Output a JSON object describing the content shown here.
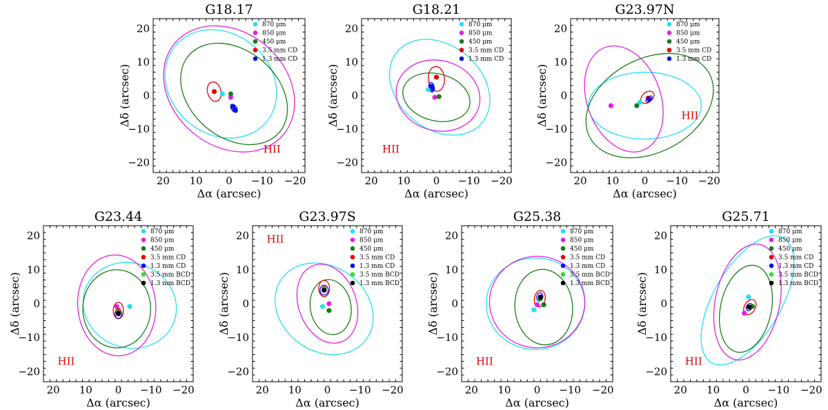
{
  "colors": {
    "870": "#22e0f2",
    "850": "#e51ee5",
    "450": "#1a7a1a",
    "3.5mmCD": "#e60000",
    "1.3mmCD": "#0b12e0",
    "3.5mmBCD": "#2ee02e",
    "1.3mmBCD": "#000000"
  },
  "chart_data": [
    {
      "type": "scatter",
      "title": "G18.17",
      "xlabel": "Δα (arcsec)",
      "ylabel": "Δδ (arcsec)",
      "xlim": [
        23,
        -23
      ],
      "ylim": [
        -23,
        23
      ],
      "xticks": [
        20,
        10,
        0,
        -10,
        -20
      ],
      "yticks": [
        -20,
        -10,
        0,
        10,
        20
      ],
      "legend": [
        "870 μm",
        "850 μm",
        "450 μm",
        "3.5 mm CD",
        "1.3 mm CD"
      ],
      "legend_keys": [
        "870",
        "850",
        "450",
        "3.5mmCD",
        "1.3mmCD"
      ],
      "label": "HII",
      "points": [
        {
          "key": "870",
          "x": 2.0,
          "y": 0.5
        },
        {
          "key": "850",
          "x": -0.5,
          "y": -0.5
        },
        {
          "key": "450",
          "x": -0.5,
          "y": 0.5
        },
        {
          "key": "3.5mmCD",
          "x": 4.5,
          "y": 1.2
        },
        {
          "key": "1.3mmCD",
          "x": -1.2,
          "y": -3.3
        },
        {
          "key": "1.3mmCD",
          "x": -1.8,
          "y": -4.3
        }
      ],
      "ellipses": [
        {
          "key": "870",
          "x": 2.5,
          "y": 3.5,
          "a": 18.0,
          "b": 15.0,
          "pa": -40
        },
        {
          "key": "850",
          "x": 0.0,
          "y": 2.0,
          "a": 21.5,
          "b": 17.0,
          "pa": -40
        },
        {
          "key": "450",
          "x": -1.5,
          "y": 0.5,
          "a": 18.0,
          "b": 13.0,
          "pa": -40
        },
        {
          "key": "3.5mmCD",
          "x": 4.5,
          "y": 1.2,
          "a": 3.0,
          "b": 2.0,
          "pa": -75
        },
        {
          "key": "1.3mmCD",
          "x": -1.5,
          "y": -3.8,
          "a": 1.4,
          "b": 0.8,
          "pa": -55
        }
      ]
    },
    {
      "type": "scatter",
      "title": "G18.21",
      "xlabel": "Δα (arcsec)",
      "ylabel": "Δδ (arcsec)",
      "xlim": [
        23,
        -23
      ],
      "ylim": [
        -23,
        23
      ],
      "xticks": [
        20,
        10,
        0,
        -10,
        -20
      ],
      "yticks": [
        -20,
        -10,
        0,
        10,
        20
      ],
      "legend": [
        "870 μm",
        "850 μm",
        "450 μm",
        "3.5 mm CD",
        "1.3 mm CD"
      ],
      "legend_keys": [
        "870",
        "850",
        "450",
        "3.5mmCD",
        "1.3mmCD"
      ],
      "label": "HII",
      "points": [
        {
          "key": "870",
          "x": 2.5,
          "y": 1.8
        },
        {
          "key": "850",
          "x": 0.5,
          "y": -0.5
        },
        {
          "key": "450",
          "x": -0.8,
          "y": -0.3
        },
        {
          "key": "3.5mmCD",
          "x": 0.0,
          "y": 5.5
        },
        {
          "key": "1.3mmCD",
          "x": 1.6,
          "y": 2.8
        },
        {
          "key": "1.3mmCD",
          "x": 1.2,
          "y": 2.0
        }
      ],
      "ellipses": [
        {
          "key": "870",
          "x": -1.0,
          "y": 2.5,
          "a": 17.0,
          "b": 12.5,
          "pa": -40
        },
        {
          "key": "850",
          "x": -0.5,
          "y": 0.0,
          "a": 13.0,
          "b": 10.5,
          "pa": -15
        },
        {
          "key": "450",
          "x": 0.0,
          "y": -0.5,
          "a": 10.5,
          "b": 7.0,
          "pa": -15
        },
        {
          "key": "3.5mmCD",
          "x": 0.0,
          "y": 5.0,
          "a": 3.8,
          "b": 2.4,
          "pa": -85
        },
        {
          "key": "1.3mmCD",
          "x": 1.5,
          "y": 2.5,
          "a": 1.5,
          "b": 0.8,
          "pa": -80
        }
      ]
    },
    {
      "type": "scatter",
      "title": "G23.97N",
      "xlabel": "Δα (arcsec)",
      "ylabel": "Δδ (arcsec)",
      "xlim": [
        23,
        -23
      ],
      "ylim": [
        -23,
        23
      ],
      "xticks": [
        20,
        10,
        0,
        -10,
        -20
      ],
      "yticks": [
        -20,
        -10,
        0,
        10,
        20
      ],
      "legend": [
        "870 μm",
        "850 μm",
        "450 μm",
        "3.5 mm CD",
        "1.3 mm CD"
      ],
      "legend_keys": [
        "870",
        "850",
        "450",
        "3.5mmCD",
        "1.3mmCD"
      ],
      "label": "HII",
      "points": [
        {
          "key": "870",
          "x": 1.5,
          "y": -2.0
        },
        {
          "key": "850",
          "x": 10.5,
          "y": -3.0
        },
        {
          "key": "450",
          "x": 2.5,
          "y": -3.0
        },
        {
          "key": "3.5mmCD",
          "x": -1.0,
          "y": -0.8
        },
        {
          "key": "1.3mmCD",
          "x": -1.3,
          "y": -1.0
        }
      ],
      "ellipses": [
        {
          "key": "870",
          "x": 0.0,
          "y": -3.0,
          "a": 17.5,
          "b": 10.0,
          "pa": 0
        },
        {
          "key": "850",
          "x": 6.5,
          "y": -1.0,
          "a": 17.0,
          "b": 11.0,
          "pa": -70
        },
        {
          "key": "450",
          "x": -1.5,
          "y": -3.0,
          "a": 21.0,
          "b": 14.0,
          "pa": 28
        },
        {
          "key": "3.5mmCD",
          "x": -0.8,
          "y": -0.5,
          "a": 2.3,
          "b": 1.5,
          "pa": 40
        },
        {
          "key": "1.3mmCD",
          "x": -1.3,
          "y": -1.0,
          "a": 1.2,
          "b": 0.6,
          "pa": 45
        }
      ]
    },
    {
      "type": "scatter",
      "title": "G23.44",
      "xlabel": "Δα (arcsec)",
      "ylabel": "Δδ (arcsec)",
      "xlim": [
        23,
        -23
      ],
      "ylim": [
        -23,
        23
      ],
      "xticks": [
        20,
        10,
        0,
        -10,
        -20
      ],
      "yticks": [
        -20,
        -10,
        0,
        10,
        20
      ],
      "legend": [
        "870 μm",
        "850 μm",
        "450 μm",
        "3.5 mm CD",
        "1.3 mm CD",
        "3.5 mm BCD",
        "1.3 mm BCD"
      ],
      "legend_keys": [
        "870",
        "850",
        "450",
        "3.5mmCD",
        "1.3mmCD",
        "3.5mmBCD",
        "1.3mmBCD"
      ],
      "label": "HII",
      "points": [
        {
          "key": "870",
          "x": -3.5,
          "y": -0.8
        },
        {
          "key": "850",
          "x": 0.5,
          "y": -0.8
        },
        {
          "key": "450",
          "x": 0.0,
          "y": -2.8
        },
        {
          "key": "3.5mmCD",
          "x": 0.0,
          "y": -2.0
        },
        {
          "key": "1.3mmCD",
          "x": 0.0,
          "y": -3.0
        },
        {
          "key": "3.5mmBCD",
          "x": 0.0,
          "y": -2.5
        },
        {
          "key": "1.3mmBCD",
          "x": 0.0,
          "y": -2.8
        }
      ],
      "ellipses": [
        {
          "key": "870",
          "x": -3.5,
          "y": -0.5,
          "a": 14.5,
          "b": 12.5,
          "pa": -20
        },
        {
          "key": "850",
          "x": 0.5,
          "y": -0.5,
          "a": 15.5,
          "b": 11.5,
          "pa": -85
        },
        {
          "key": "450",
          "x": 0.5,
          "y": -1.5,
          "a": 12.0,
          "b": 10.0,
          "pa": -90
        },
        {
          "key": "3.5mmCD",
          "x": 0.0,
          "y": -2.0,
          "a": 2.5,
          "b": 1.5,
          "pa": 90
        },
        {
          "key": "1.3mmCD",
          "x": 0.0,
          "y": -3.0,
          "a": 1.4,
          "b": 1.0,
          "pa": 90
        }
      ]
    },
    {
      "type": "scatter",
      "title": "G23.97S",
      "xlabel": "Δα (arcsec)",
      "ylabel": "Δδ (arcsec)",
      "xlim": [
        23,
        -23
      ],
      "ylim": [
        -23,
        23
      ],
      "xticks": [
        20,
        10,
        0,
        -10,
        -20
      ],
      "yticks": [
        -20,
        -10,
        0,
        10,
        20
      ],
      "legend": [
        "870 μm",
        "850 μm",
        "450 μm",
        "3.5 mm CD",
        "1.3 mm CD",
        "3.5 mm BCD",
        "1.3 mm BCD"
      ],
      "legend_keys": [
        "870",
        "850",
        "450",
        "3.5mmCD",
        "1.3mmCD",
        "3.5mmBCD",
        "1.3mmBCD"
      ],
      "label": "HII",
      "points": [
        {
          "key": "870",
          "x": 1.5,
          "y": -0.8
        },
        {
          "key": "850",
          "x": -0.5,
          "y": 0.0
        },
        {
          "key": "450",
          "x": -0.5,
          "y": -2.0
        },
        {
          "key": "3.5mmCD",
          "x": 1.0,
          "y": 4.5
        },
        {
          "key": "1.3mmCD",
          "x": 1.0,
          "y": 4.0
        },
        {
          "key": "3.5mmBCD",
          "x": 1.0,
          "y": 4.3
        },
        {
          "key": "1.3mmBCD",
          "x": 1.0,
          "y": 4.0
        }
      ],
      "ellipses": [
        {
          "key": "870",
          "x": 1.0,
          "y": -1.5,
          "a": 16.0,
          "b": 12.5,
          "pa": -35
        },
        {
          "key": "850",
          "x": 0.0,
          "y": 0.0,
          "a": 12.5,
          "b": 8.5,
          "pa": -70
        },
        {
          "key": "450",
          "x": -1.0,
          "y": -1.0,
          "a": 8.5,
          "b": 6.0,
          "pa": -80
        },
        {
          "key": "3.5mmCD",
          "x": 1.0,
          "y": 4.5,
          "a": 2.5,
          "b": 1.6,
          "pa": 90
        },
        {
          "key": "1.3mmCD",
          "x": 1.0,
          "y": 4.0,
          "a": 1.5,
          "b": 1.2,
          "pa": 90
        }
      ]
    },
    {
      "type": "scatter",
      "title": "G25.38",
      "xlabel": "Δα (arcsec)",
      "ylabel": "Δδ (arcsec)",
      "xlim": [
        23,
        -23
      ],
      "ylim": [
        -23,
        23
      ],
      "xticks": [
        20,
        10,
        0,
        -10,
        -20
      ],
      "yticks": [
        -20,
        -10,
        0,
        10,
        20
      ],
      "legend": [
        "870 μm",
        "850 μm",
        "450 μm",
        "3.5 mm CD",
        "1.3 mm CD",
        "3.5 mm BCD",
        "1.3 mm BCD"
      ],
      "legend_keys": [
        "870",
        "850",
        "450",
        "3.5mmCD",
        "1.3mmCD",
        "3.5mmBCD",
        "1.3mmBCD"
      ],
      "label": "HII",
      "points": [
        {
          "key": "870",
          "x": 1.0,
          "y": -1.8
        },
        {
          "key": "850",
          "x": 0.0,
          "y": -0.3
        },
        {
          "key": "450",
          "x": -2.0,
          "y": -0.3
        },
        {
          "key": "3.5mmCD",
          "x": -1.0,
          "y": 2.0
        },
        {
          "key": "1.3mmCD",
          "x": -1.0,
          "y": 2.0
        },
        {
          "key": "3.5mmBCD",
          "x": -1.0,
          "y": 1.5
        },
        {
          "key": "1.3mmBCD",
          "x": -1.0,
          "y": 1.8
        }
      ],
      "ellipses": [
        {
          "key": "870",
          "x": 0.5,
          "y": 0.0,
          "a": 15.0,
          "b": 13.5,
          "pa": 0
        },
        {
          "key": "850",
          "x": 0.0,
          "y": 0.5,
          "a": 14.5,
          "b": 13.5,
          "pa": 0
        },
        {
          "key": "450",
          "x": -2.0,
          "y": -1.0,
          "a": 11.5,
          "b": 8.5,
          "pa": -85
        },
        {
          "key": "3.5mmCD",
          "x": -0.8,
          "y": 1.5,
          "a": 2.5,
          "b": 1.6,
          "pa": 80
        },
        {
          "key": "1.3mmCD",
          "x": -0.8,
          "y": 2.0,
          "a": 1.3,
          "b": 0.9,
          "pa": 80
        }
      ]
    },
    {
      "type": "scatter",
      "title": "G25.71",
      "xlabel": "Δα (arcsec)",
      "ylabel": "Δδ (arcsec)",
      "xlim": [
        23,
        -23
      ],
      "ylim": [
        -23,
        23
      ],
      "xticks": [
        20,
        10,
        0,
        -10,
        -20
      ],
      "yticks": [
        -20,
        -10,
        0,
        10,
        20
      ],
      "legend": [
        "870 μm",
        "850 μm",
        "450 μm",
        "3.5 mm CD",
        "1.3 mm CD",
        "3.5 mm BCD",
        "1.3 mm BCD"
      ],
      "legend_keys": [
        "870",
        "850",
        "450",
        "3.5mmCD",
        "1.3mmCD",
        "3.5mmBCD",
        "1.3mmBCD"
      ],
      "label": "HII",
      "points": [
        {
          "key": "870",
          "x": -0.8,
          "y": 2.0
        },
        {
          "key": "850",
          "x": 0.5,
          "y": -2.8
        },
        {
          "key": "450",
          "x": -2.0,
          "y": -0.8
        },
        {
          "key": "3.5mmCD",
          "x": -1.0,
          "y": -1.0
        },
        {
          "key": "1.3mmCD",
          "x": -1.0,
          "y": -1.0
        },
        {
          "key": "3.5mmBCD",
          "x": -1.0,
          "y": -1.0
        },
        {
          "key": "1.3mmBCD",
          "x": -1.0,
          "y": -1.0
        }
      ],
      "ellipses": [
        {
          "key": "870",
          "x": -0.5,
          "y": 1.0,
          "a": 22.0,
          "b": 10.0,
          "pa": 60
        },
        {
          "key": "850",
          "x": -0.5,
          "y": 0.5,
          "a": 18.0,
          "b": 9.5,
          "pa": 78
        },
        {
          "key": "450",
          "x": 0.0,
          "y": -1.5,
          "a": 13.5,
          "b": 7.5,
          "pa": 78
        },
        {
          "key": "3.5mmCD",
          "x": -1.2,
          "y": -1.0,
          "a": 2.5,
          "b": 1.6,
          "pa": 60
        },
        {
          "key": "1.3mmCD",
          "x": -1.0,
          "y": -1.0,
          "a": 1.2,
          "b": 0.8,
          "pa": 60
        }
      ]
    }
  ]
}
